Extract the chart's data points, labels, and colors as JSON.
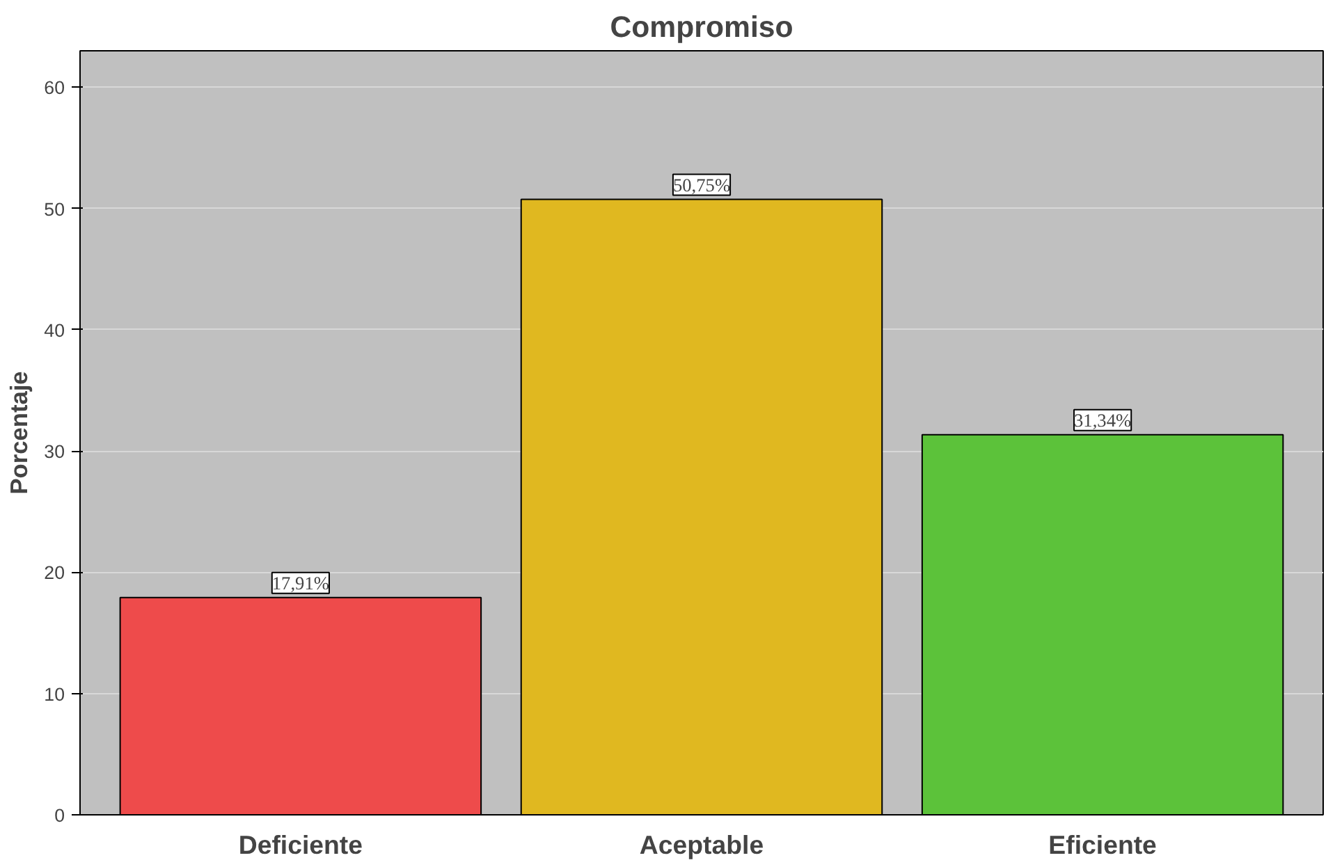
{
  "chart_data": {
    "type": "bar",
    "title": "Compromiso",
    "ylabel": "Porcentaje",
    "categories": [
      "Deficiente",
      "Aceptable",
      "Eficiente"
    ],
    "values": [
      17.91,
      50.75,
      31.34
    ],
    "colors": [
      "#ee4b4b",
      "#e0b820",
      "#5cc23a"
    ],
    "value_labels": [
      "17,91%",
      "50,75%",
      "31,34%"
    ],
    "ylim": [
      0,
      63
    ],
    "yticks": [
      0,
      10,
      20,
      30,
      40,
      50,
      60
    ],
    "grid": "y"
  }
}
